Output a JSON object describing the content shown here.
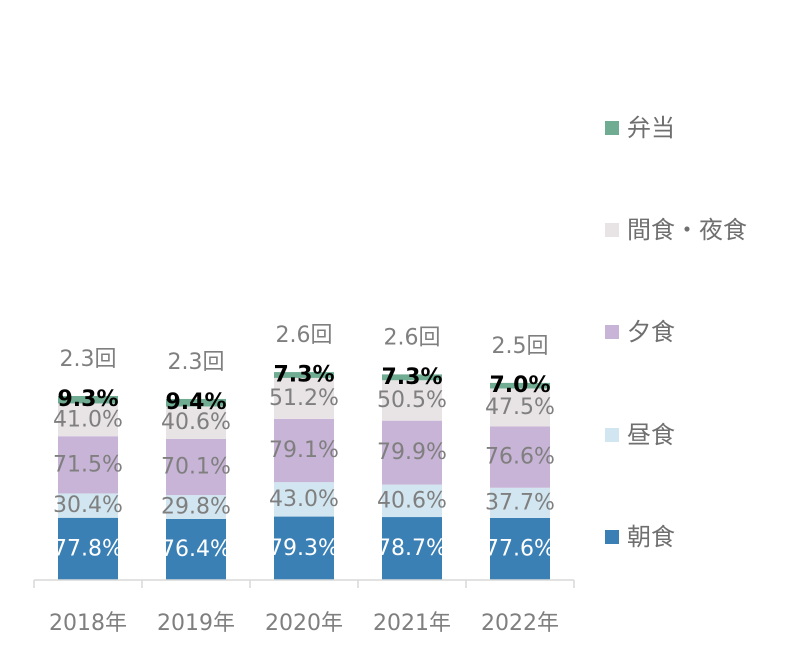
{
  "chart_data": {
    "type": "bar",
    "stacked": true,
    "categories": [
      "2018年",
      "2019年",
      "2020年",
      "2021年",
      "2022年"
    ],
    "series": [
      {
        "name": "朝食",
        "values": [
          77.8,
          76.4,
          79.3,
          78.7,
          77.6
        ],
        "labels": [
          "77.8%",
          "76.4%",
          "79.3%",
          "78.7%",
          "77.6%"
        ],
        "color": "#3b80b5",
        "label_color": "#ffffff",
        "bold": false
      },
      {
        "name": "昼食",
        "values": [
          30.4,
          29.8,
          43.0,
          40.6,
          37.7
        ],
        "labels": [
          "30.4%",
          "29.8%",
          "43.0%",
          "40.6%",
          "37.7%"
        ],
        "color": "#d2e6f1",
        "label_color": "#7f7f7f",
        "bold": false
      },
      {
        "name": "夕食",
        "values": [
          71.5,
          70.1,
          79.1,
          79.9,
          76.6
        ],
        "labels": [
          "71.5%",
          "70.1%",
          "79.1%",
          "79.9%",
          "76.6%"
        ],
        "color": "#c8b4d6",
        "label_color": "#7f7f7f",
        "bold": false
      },
      {
        "name": "間食・夜食",
        "values": [
          41.0,
          40.6,
          51.2,
          50.5,
          47.5
        ],
        "labels": [
          "41.0%",
          "40.6%",
          "51.2%",
          "50.5%",
          "47.5%"
        ],
        "color": "#e8e4e6",
        "label_color": "#7f7f7f",
        "bold": false
      },
      {
        "name": "弁当",
        "values": [
          9.3,
          9.4,
          7.3,
          7.3,
          7.0
        ],
        "labels": [
          "9.3%",
          "9.4%",
          "7.3%",
          "7.3%",
          "7.0%"
        ],
        "color": "#6fac92",
        "label_color": "#000000",
        "bold": true
      }
    ],
    "totals": [
      "2.3回",
      "2.3回",
      "2.6回",
      "2.6回",
      "2.5回"
    ],
    "title": "",
    "xlabel": "",
    "ylabel": "",
    "legend_position": "right",
    "grid": false,
    "axis_color": "#d9d9d9"
  }
}
